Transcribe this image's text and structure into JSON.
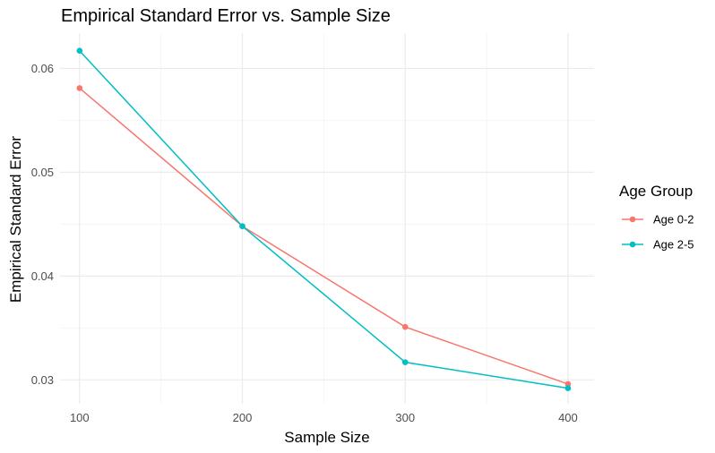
{
  "chart_data": {
    "type": "line",
    "title": "Empirical Standard Error vs. Sample Size",
    "xlabel": "Sample Size",
    "ylabel": "Empirical Standard Error",
    "x": [
      100,
      200,
      300,
      400
    ],
    "xticks": [
      100,
      200,
      300,
      400
    ],
    "xtick_labels": [
      "100",
      "200",
      "300",
      "400"
    ],
    "yticks": [
      0.03,
      0.04,
      0.05,
      0.06
    ],
    "ytick_labels": [
      "0.03",
      "0.04",
      "0.05",
      "0.06"
    ],
    "xlim": [
      88,
      416
    ],
    "ylim": [
      0.0277,
      0.0634
    ],
    "grid": true,
    "legend": {
      "title": "Age Group",
      "position": "right"
    },
    "series": [
      {
        "name": "Age 0-2",
        "color": "#F8766D",
        "values": [
          0.0581,
          0.0448,
          0.0351,
          0.0296
        ]
      },
      {
        "name": "Age 2-5",
        "color": "#00BFC4",
        "values": [
          0.0617,
          0.0448,
          0.0317,
          0.0292
        ]
      }
    ]
  }
}
